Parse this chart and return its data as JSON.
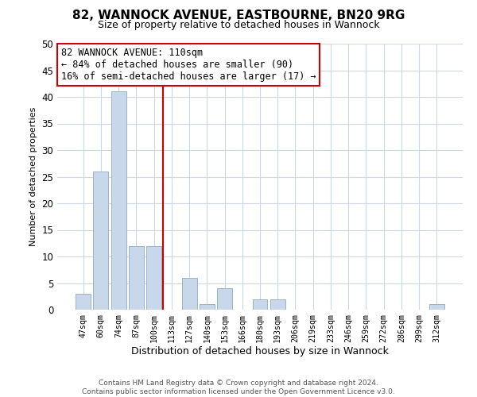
{
  "title": "82, WANNOCK AVENUE, EASTBOURNE, BN20 9RG",
  "subtitle": "Size of property relative to detached houses in Wannock",
  "xlabel": "Distribution of detached houses by size in Wannock",
  "ylabel": "Number of detached properties",
  "bar_labels": [
    "47sqm",
    "60sqm",
    "74sqm",
    "87sqm",
    "100sqm",
    "113sqm",
    "127sqm",
    "140sqm",
    "153sqm",
    "166sqm",
    "180sqm",
    "193sqm",
    "206sqm",
    "219sqm",
    "233sqm",
    "246sqm",
    "259sqm",
    "272sqm",
    "286sqm",
    "299sqm",
    "312sqm"
  ],
  "bar_values": [
    3,
    26,
    41,
    12,
    12,
    0,
    6,
    1,
    4,
    0,
    2,
    2,
    0,
    0,
    0,
    0,
    0,
    0,
    0,
    0,
    1
  ],
  "bar_color": "#c8d8ea",
  "bar_edge_color": "#9ab4cc",
  "highlight_line_color": "#cc0000",
  "ylim": [
    0,
    50
  ],
  "yticks": [
    0,
    5,
    10,
    15,
    20,
    25,
    30,
    35,
    40,
    45,
    50
  ],
  "annotation_title": "82 WANNOCK AVENUE: 110sqm",
  "annotation_line1": "← 84% of detached houses are smaller (90)",
  "annotation_line2": "16% of semi-detached houses are larger (17) →",
  "annotation_box_color": "#ffffff",
  "annotation_box_edge": "#cc0000",
  "footer_line1": "Contains HM Land Registry data © Crown copyright and database right 2024.",
  "footer_line2": "Contains public sector information licensed under the Open Government Licence v3.0.",
  "bg_color": "#ffffff",
  "grid_color": "#ccd8e4"
}
